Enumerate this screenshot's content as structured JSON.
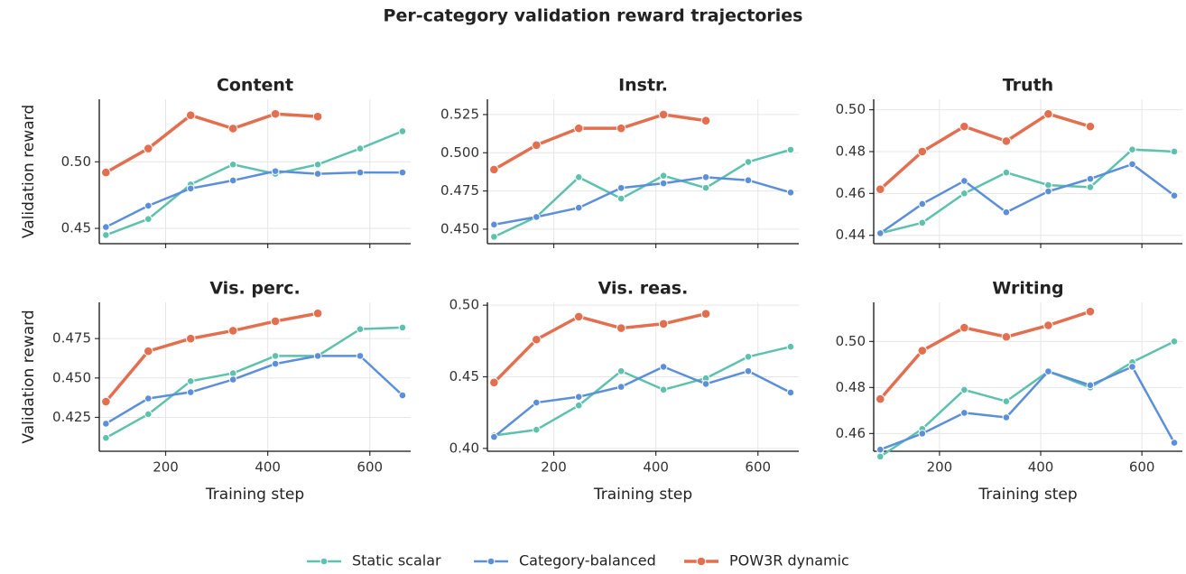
{
  "title": "Per-category validation reward trajectories",
  "chart_data": [
    {
      "type": "line",
      "title": "Content",
      "ylabel": "Validation reward",
      "x": [
        83,
        166,
        249,
        332,
        415,
        498,
        581,
        664
      ],
      "xlim": [
        70,
        680
      ],
      "xticks": [
        200,
        400,
        600
      ],
      "ylim": [
        0.4385,
        0.547
      ],
      "yticks": [
        0.45,
        {
          "value": 0.5,
          "label": "0.50"
        }
      ],
      "grid": true,
      "series": [
        {
          "name": "Static scalar",
          "color": "#5ec1ad",
          "linewidth": 2.5,
          "values": [
            0.445,
            0.457,
            0.483,
            0.498,
            0.491,
            0.498,
            0.51,
            0.523
          ]
        },
        {
          "name": "Category-balanced",
          "color": "#5b8fd9",
          "linewidth": 2.5,
          "values": [
            0.451,
            0.467,
            0.48,
            0.486,
            0.493,
            0.491,
            0.492,
            0.492
          ]
        },
        {
          "name": "POW3R dynamic",
          "color": "#e26f4f",
          "linewidth": 3.5,
          "values": [
            0.492,
            0.51,
            0.535,
            0.525,
            0.536,
            0.534,
            null,
            null
          ]
        }
      ]
    },
    {
      "type": "line",
      "title": "Instr.",
      "x": [
        83,
        166,
        249,
        332,
        415,
        498,
        581,
        664
      ],
      "xlim": [
        70,
        680
      ],
      "xticks": [
        200,
        400,
        600
      ],
      "ylim": [
        0.4405,
        0.535
      ],
      "yticks": [
        {
          "value": 0.45,
          "label": "0.450"
        },
        0.475,
        {
          "value": 0.5,
          "label": "0.500"
        },
        0.525
      ],
      "grid": true,
      "series": [
        {
          "name": "Static scalar",
          "color": "#5ec1ad",
          "linewidth": 2.5,
          "values": [
            0.445,
            0.458,
            0.484,
            0.47,
            0.485,
            0.477,
            0.494,
            0.502
          ]
        },
        {
          "name": "Category-balanced",
          "color": "#5b8fd9",
          "linewidth": 2.5,
          "values": [
            0.453,
            0.458,
            0.464,
            0.477,
            0.48,
            0.484,
            0.482,
            0.474
          ]
        },
        {
          "name": "POW3R dynamic",
          "color": "#e26f4f",
          "linewidth": 3.5,
          "values": [
            0.489,
            0.505,
            0.516,
            0.516,
            0.525,
            0.521,
            null,
            null
          ]
        }
      ]
    },
    {
      "type": "line",
      "title": "Truth",
      "x": [
        83,
        166,
        249,
        332,
        415,
        498,
        581,
        664
      ],
      "xlim": [
        70,
        680
      ],
      "xticks": [
        200,
        400,
        600
      ],
      "ylim": [
        0.436,
        0.505
      ],
      "yticks": [
        0.44,
        0.46,
        0.48,
        {
          "value": 0.5,
          "label": "0.50"
        }
      ],
      "grid": true,
      "series": [
        {
          "name": "Static scalar",
          "color": "#5ec1ad",
          "linewidth": 2.5,
          "values": [
            0.441,
            0.446,
            0.46,
            0.47,
            0.464,
            0.463,
            0.481,
            0.48
          ]
        },
        {
          "name": "Category-balanced",
          "color": "#5b8fd9",
          "linewidth": 2.5,
          "values": [
            0.441,
            0.455,
            0.466,
            0.451,
            0.461,
            0.467,
            0.474,
            0.459
          ]
        },
        {
          "name": "POW3R dynamic",
          "color": "#e26f4f",
          "linewidth": 3.5,
          "values": [
            0.462,
            0.48,
            0.492,
            0.485,
            0.498,
            0.492,
            null,
            null
          ]
        }
      ]
    },
    {
      "type": "line",
      "title": "Vis. perc.",
      "ylabel": "Validation reward",
      "xlabel": "Training step",
      "x": [
        83,
        166,
        249,
        332,
        415,
        498,
        581,
        664
      ],
      "xlim": [
        70,
        680
      ],
      "xticks": [
        200,
        400,
        600
      ],
      "ylim": [
        0.4035,
        0.498
      ],
      "yticks": [
        0.425,
        {
          "value": 0.45,
          "label": "0.450"
        },
        0.475
      ],
      "grid": true,
      "series": [
        {
          "name": "Static scalar",
          "color": "#5ec1ad",
          "linewidth": 2.5,
          "values": [
            0.412,
            0.427,
            0.448,
            0.453,
            0.464,
            0.464,
            0.481,
            0.482
          ]
        },
        {
          "name": "Category-balanced",
          "color": "#5b8fd9",
          "linewidth": 2.5,
          "values": [
            0.421,
            0.437,
            0.441,
            0.449,
            0.459,
            0.464,
            0.464,
            0.439
          ]
        },
        {
          "name": "POW3R dynamic",
          "color": "#e26f4f",
          "linewidth": 3.5,
          "values": [
            0.435,
            0.467,
            0.475,
            0.48,
            0.486,
            0.491,
            null,
            null
          ]
        }
      ]
    },
    {
      "type": "line",
      "title": "Vis. reas.",
      "xlabel": "Training step",
      "x": [
        83,
        166,
        249,
        332,
        415,
        498,
        581,
        664
      ],
      "xlim": [
        70,
        680
      ],
      "xticks": [
        200,
        400,
        600
      ],
      "ylim": [
        0.398,
        0.502
      ],
      "yticks": [
        {
          "value": 0.4,
          "label": "0.40"
        },
        0.45,
        {
          "value": 0.5,
          "label": "0.50"
        }
      ],
      "grid": true,
      "series": [
        {
          "name": "Static scalar",
          "color": "#5ec1ad",
          "linewidth": 2.5,
          "values": [
            0.409,
            0.413,
            0.43,
            0.454,
            0.441,
            0.449,
            0.464,
            0.471
          ]
        },
        {
          "name": "Category-balanced",
          "color": "#5b8fd9",
          "linewidth": 2.5,
          "values": [
            0.408,
            0.432,
            0.436,
            0.443,
            0.457,
            0.445,
            0.454,
            0.439
          ]
        },
        {
          "name": "POW3R dynamic",
          "color": "#e26f4f",
          "linewidth": 3.5,
          "values": [
            0.446,
            0.476,
            0.492,
            0.484,
            0.487,
            0.494,
            null,
            null
          ]
        }
      ]
    },
    {
      "type": "line",
      "title": "Writing",
      "xlabel": "Training step",
      "x": [
        83,
        166,
        249,
        332,
        415,
        498,
        581,
        664
      ],
      "xlim": [
        70,
        680
      ],
      "xticks": [
        200,
        400,
        600
      ],
      "ylim": [
        0.4523,
        0.517
      ],
      "yticks": [
        0.46,
        0.48,
        {
          "value": 0.5,
          "label": "0.50"
        }
      ],
      "grid": true,
      "series": [
        {
          "name": "Static scalar",
          "color": "#5ec1ad",
          "linewidth": 2.5,
          "values": [
            0.45,
            0.462,
            0.479,
            0.474,
            0.487,
            0.48,
            0.491,
            0.5
          ]
        },
        {
          "name": "Category-balanced",
          "color": "#5b8fd9",
          "linewidth": 2.5,
          "values": [
            0.453,
            0.46,
            0.469,
            0.467,
            0.487,
            0.481,
            0.489,
            0.456
          ]
        },
        {
          "name": "POW3R dynamic",
          "color": "#e26f4f",
          "linewidth": 3.5,
          "values": [
            0.475,
            0.496,
            0.506,
            0.502,
            0.507,
            0.513,
            null,
            null
          ]
        }
      ]
    }
  ],
  "sharex": true
}
